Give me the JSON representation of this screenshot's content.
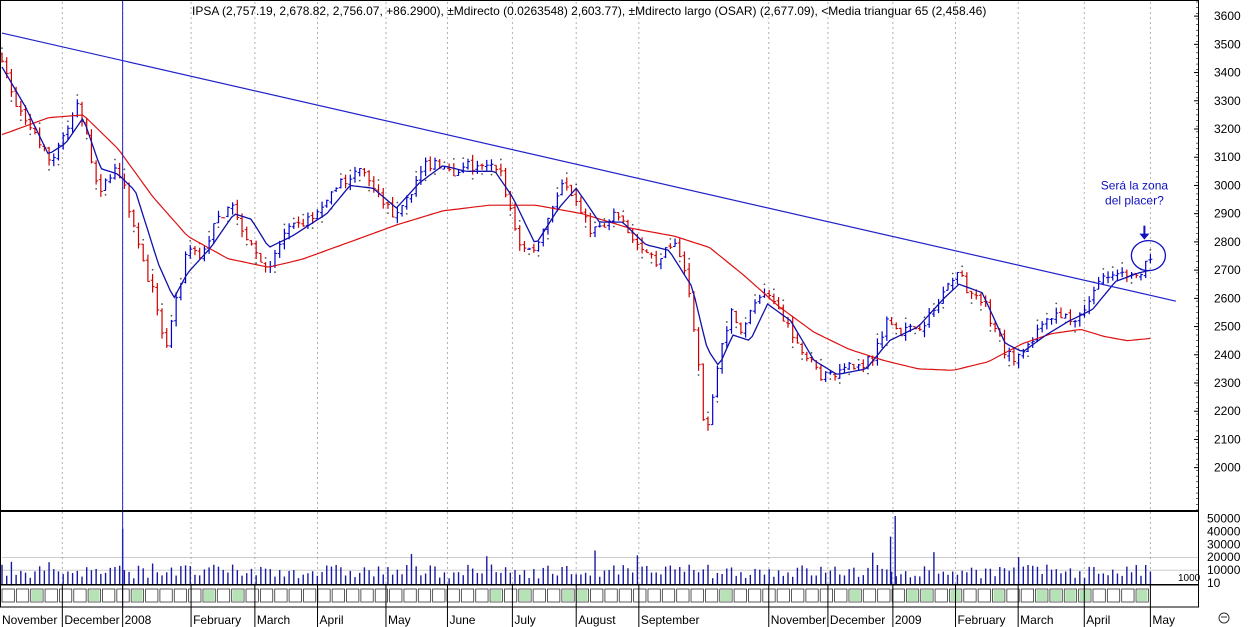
{
  "chart_data": {
    "type": "ohlc",
    "title": "IPSA (2,757.19, 2,678.82, 2,756.07, +86.2900), ±Mdirecto (0.0263548) 2,603.77), ±Mdirecto largo (OSAR) (2,677.09), <Media trianguar 65 (2,458.46)",
    "price_axis": {
      "min": 1850,
      "max": 3650,
      "ticks": [
        2000,
        2100,
        2200,
        2300,
        2400,
        2500,
        2600,
        2700,
        2800,
        2900,
        3000,
        3100,
        3200,
        3300,
        3400,
        3500,
        3600
      ]
    },
    "volume_axis": {
      "max": 52000,
      "ticks": [
        10,
        10000,
        20000,
        30000,
        40000,
        50000
      ],
      "tick_labels": [
        "10",
        "10000",
        "20000",
        "30000",
        "40000",
        "50000"
      ],
      "extra_label": "1000"
    },
    "x_labels": [
      {
        "label": "November",
        "t": 0.0
      },
      {
        "label": "December",
        "t": 0.052
      },
      {
        "label": "2008",
        "t": 0.104
      },
      {
        "label": "February",
        "t": 0.163
      },
      {
        "label": "March",
        "t": 0.218
      },
      {
        "label": "April",
        "t": 0.272
      },
      {
        "label": "May",
        "t": 0.331
      },
      {
        "label": "June",
        "t": 0.384
      },
      {
        "label": "July",
        "t": 0.44
      },
      {
        "label": "August",
        "t": 0.495
      },
      {
        "label": "September",
        "t": 0.549
      },
      {
        "label": "November",
        "t": 0.661
      },
      {
        "label": "December",
        "t": 0.712
      },
      {
        "label": "2009",
        "t": 0.768
      },
      {
        "label": "February",
        "t": 0.822
      },
      {
        "label": "March",
        "t": 0.876
      },
      {
        "label": "April",
        "t": 0.933
      },
      {
        "label": "May",
        "t": 0.99
      }
    ],
    "price_path": [
      {
        "t": 0.0,
        "p": 3460
      },
      {
        "t": 0.01,
        "p": 3300
      },
      {
        "t": 0.02,
        "p": 3230
      },
      {
        "t": 0.032,
        "p": 3150
      },
      {
        "t": 0.042,
        "p": 3080
      },
      {
        "t": 0.055,
        "p": 3200
      },
      {
        "t": 0.066,
        "p": 3280
      },
      {
        "t": 0.076,
        "p": 3120
      },
      {
        "t": 0.084,
        "p": 2950
      },
      {
        "t": 0.095,
        "p": 3060
      },
      {
        "t": 0.104,
        "p": 3030
      },
      {
        "t": 0.112,
        "p": 2880
      },
      {
        "t": 0.122,
        "p": 2720
      },
      {
        "t": 0.132,
        "p": 2600
      },
      {
        "t": 0.141,
        "p": 2420
      },
      {
        "t": 0.15,
        "p": 2580
      },
      {
        "t": 0.16,
        "p": 2780
      },
      {
        "t": 0.172,
        "p": 2760
      },
      {
        "t": 0.185,
        "p": 2880
      },
      {
        "t": 0.198,
        "p": 2930
      },
      {
        "t": 0.21,
        "p": 2830
      },
      {
        "t": 0.221,
        "p": 2740
      },
      {
        "t": 0.231,
        "p": 2700
      },
      {
        "t": 0.242,
        "p": 2820
      },
      {
        "t": 0.256,
        "p": 2860
      },
      {
        "t": 0.27,
        "p": 2890
      },
      {
        "t": 0.284,
        "p": 2960
      },
      {
        "t": 0.297,
        "p": 3030
      },
      {
        "t": 0.31,
        "p": 3060
      },
      {
        "t": 0.322,
        "p": 2970
      },
      {
        "t": 0.336,
        "p": 2900
      },
      {
        "t": 0.35,
        "p": 2960
      },
      {
        "t": 0.362,
        "p": 3060
      },
      {
        "t": 0.375,
        "p": 3090
      },
      {
        "t": 0.388,
        "p": 3030
      },
      {
        "t": 0.398,
        "p": 3080
      },
      {
        "t": 0.412,
        "p": 3050
      },
      {
        "t": 0.428,
        "p": 3070
      },
      {
        "t": 0.438,
        "p": 2920
      },
      {
        "t": 0.446,
        "p": 2800
      },
      {
        "t": 0.458,
        "p": 2760
      },
      {
        "t": 0.47,
        "p": 2880
      },
      {
        "t": 0.482,
        "p": 3010
      },
      {
        "t": 0.494,
        "p": 2960
      },
      {
        "t": 0.506,
        "p": 2850
      },
      {
        "t": 0.518,
        "p": 2840
      },
      {
        "t": 0.53,
        "p": 2900
      },
      {
        "t": 0.542,
        "p": 2820
      },
      {
        "t": 0.555,
        "p": 2760
      },
      {
        "t": 0.566,
        "p": 2720
      },
      {
        "t": 0.576,
        "p": 2800
      },
      {
        "t": 0.585,
        "p": 2760
      },
      {
        "t": 0.593,
        "p": 2620
      },
      {
        "t": 0.6,
        "p": 2380
      },
      {
        "t": 0.606,
        "p": 2100
      },
      {
        "t": 0.612,
        "p": 2250
      },
      {
        "t": 0.62,
        "p": 2420
      },
      {
        "t": 0.628,
        "p": 2560
      },
      {
        "t": 0.638,
        "p": 2470
      },
      {
        "t": 0.648,
        "p": 2580
      },
      {
        "t": 0.66,
        "p": 2600
      },
      {
        "t": 0.672,
        "p": 2540
      },
      {
        "t": 0.684,
        "p": 2440
      },
      {
        "t": 0.696,
        "p": 2380
      },
      {
        "t": 0.708,
        "p": 2320
      },
      {
        "t": 0.722,
        "p": 2340
      },
      {
        "t": 0.736,
        "p": 2360
      },
      {
        "t": 0.75,
        "p": 2380
      },
      {
        "t": 0.762,
        "p": 2520
      },
      {
        "t": 0.775,
        "p": 2480
      },
      {
        "t": 0.789,
        "p": 2500
      },
      {
        "t": 0.803,
        "p": 2550
      },
      {
        "t": 0.815,
        "p": 2640
      },
      {
        "t": 0.823,
        "p": 2700
      },
      {
        "t": 0.834,
        "p": 2620
      },
      {
        "t": 0.846,
        "p": 2590
      },
      {
        "t": 0.855,
        "p": 2500
      },
      {
        "t": 0.864,
        "p": 2420
      },
      {
        "t": 0.874,
        "p": 2370
      },
      {
        "t": 0.885,
        "p": 2430
      },
      {
        "t": 0.897,
        "p": 2500
      },
      {
        "t": 0.909,
        "p": 2560
      },
      {
        "t": 0.921,
        "p": 2520
      },
      {
        "t": 0.935,
        "p": 2580
      },
      {
        "t": 0.947,
        "p": 2680
      },
      {
        "t": 0.96,
        "p": 2670
      },
      {
        "t": 0.972,
        "p": 2700
      },
      {
        "t": 0.984,
        "p": 2700
      },
      {
        "t": 0.99,
        "p": 2756
      }
    ],
    "moving_average_long": [
      {
        "t": 0.0,
        "p": 3180
      },
      {
        "t": 0.04,
        "p": 3240
      },
      {
        "t": 0.07,
        "p": 3250
      },
      {
        "t": 0.1,
        "p": 3130
      },
      {
        "t": 0.13,
        "p": 2960
      },
      {
        "t": 0.16,
        "p": 2820
      },
      {
        "t": 0.195,
        "p": 2740
      },
      {
        "t": 0.23,
        "p": 2710
      },
      {
        "t": 0.26,
        "p": 2740
      },
      {
        "t": 0.3,
        "p": 2800
      },
      {
        "t": 0.34,
        "p": 2860
      },
      {
        "t": 0.38,
        "p": 2910
      },
      {
        "t": 0.42,
        "p": 2930
      },
      {
        "t": 0.46,
        "p": 2930
      },
      {
        "t": 0.5,
        "p": 2900
      },
      {
        "t": 0.54,
        "p": 2850
      },
      {
        "t": 0.58,
        "p": 2820
      },
      {
        "t": 0.61,
        "p": 2780
      },
      {
        "t": 0.64,
        "p": 2680
      },
      {
        "t": 0.67,
        "p": 2570
      },
      {
        "t": 0.7,
        "p": 2480
      },
      {
        "t": 0.73,
        "p": 2420
      },
      {
        "t": 0.76,
        "p": 2380
      },
      {
        "t": 0.79,
        "p": 2350
      },
      {
        "t": 0.82,
        "p": 2345
      },
      {
        "t": 0.85,
        "p": 2375
      },
      {
        "t": 0.88,
        "p": 2440
      },
      {
        "t": 0.905,
        "p": 2475
      },
      {
        "t": 0.93,
        "p": 2490
      },
      {
        "t": 0.95,
        "p": 2465
      },
      {
        "t": 0.97,
        "p": 2450
      },
      {
        "t": 0.99,
        "p": 2458
      }
    ],
    "moving_average_short": [
      {
        "t": 0.0,
        "p": 3420
      },
      {
        "t": 0.02,
        "p": 3280
      },
      {
        "t": 0.04,
        "p": 3110
      },
      {
        "t": 0.055,
        "p": 3150
      },
      {
        "t": 0.07,
        "p": 3240
      },
      {
        "t": 0.085,
        "p": 3060
      },
      {
        "t": 0.1,
        "p": 3040
      },
      {
        "t": 0.115,
        "p": 2980
      },
      {
        "t": 0.135,
        "p": 2720
      },
      {
        "t": 0.148,
        "p": 2600
      },
      {
        "t": 0.16,
        "p": 2690
      },
      {
        "t": 0.18,
        "p": 2780
      },
      {
        "t": 0.2,
        "p": 2900
      },
      {
        "t": 0.215,
        "p": 2880
      },
      {
        "t": 0.23,
        "p": 2780
      },
      {
        "t": 0.25,
        "p": 2820
      },
      {
        "t": 0.28,
        "p": 2900
      },
      {
        "t": 0.3,
        "p": 3000
      },
      {
        "t": 0.32,
        "p": 2990
      },
      {
        "t": 0.34,
        "p": 2920
      },
      {
        "t": 0.36,
        "p": 3010
      },
      {
        "t": 0.38,
        "p": 3070
      },
      {
        "t": 0.4,
        "p": 3050
      },
      {
        "t": 0.425,
        "p": 3050
      },
      {
        "t": 0.44,
        "p": 2960
      },
      {
        "t": 0.46,
        "p": 2790
      },
      {
        "t": 0.48,
        "p": 2920
      },
      {
        "t": 0.495,
        "p": 2990
      },
      {
        "t": 0.515,
        "p": 2870
      },
      {
        "t": 0.535,
        "p": 2870
      },
      {
        "t": 0.555,
        "p": 2790
      },
      {
        "t": 0.575,
        "p": 2770
      },
      {
        "t": 0.595,
        "p": 2640
      },
      {
        "t": 0.608,
        "p": 2420
      },
      {
        "t": 0.618,
        "p": 2360
      },
      {
        "t": 0.63,
        "p": 2470
      },
      {
        "t": 0.645,
        "p": 2450
      },
      {
        "t": 0.66,
        "p": 2580
      },
      {
        "t": 0.68,
        "p": 2520
      },
      {
        "t": 0.7,
        "p": 2380
      },
      {
        "t": 0.72,
        "p": 2330
      },
      {
        "t": 0.745,
        "p": 2350
      },
      {
        "t": 0.765,
        "p": 2450
      },
      {
        "t": 0.79,
        "p": 2500
      },
      {
        "t": 0.812,
        "p": 2600
      },
      {
        "t": 0.825,
        "p": 2650
      },
      {
        "t": 0.845,
        "p": 2620
      },
      {
        "t": 0.865,
        "p": 2440
      },
      {
        "t": 0.88,
        "p": 2410
      },
      {
        "t": 0.9,
        "p": 2470
      },
      {
        "t": 0.92,
        "p": 2520
      },
      {
        "t": 0.94,
        "p": 2560
      },
      {
        "t": 0.96,
        "p": 2660
      },
      {
        "t": 0.98,
        "p": 2690
      },
      {
        "t": 0.99,
        "p": 2700
      }
    ],
    "trendline": {
      "t1": 0.0,
      "p1": 3540,
      "t2": 1.012,
      "p2": 2590
    },
    "vertical_marker_t": 0.104,
    "volume_spikes": [
      {
        "t": 0.104,
        "v": 42000
      },
      {
        "t": 0.77,
        "v": 52000
      },
      {
        "t": 0.766,
        "v": 36000
      }
    ],
    "volume_baseline": 9000,
    "annotation": {
      "text_lines": [
        "Será la zona",
        "del placer?"
      ],
      "t": 0.99,
      "p": 2730,
      "arrow": "down"
    },
    "colors": {
      "up": "#0000cc",
      "down": "#cc0000",
      "ma_long": "#dd1111",
      "ma_short": "#1111aa",
      "trendline": "#2222cc",
      "grid": "#b0b0b0"
    },
    "grid": true
  },
  "icons": {
    "corner_icon": "smiley-icon"
  }
}
